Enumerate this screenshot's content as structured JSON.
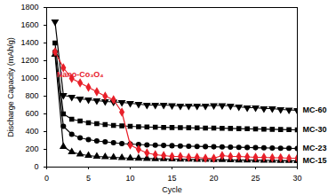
{
  "chart_data": {
    "type": "line",
    "xlabel": "Cycle",
    "ylabel": "Discharge Capacity (mAh/g)",
    "x": [
      1,
      2,
      3,
      4,
      5,
      6,
      7,
      8,
      9,
      10,
      11,
      12,
      13,
      14,
      15,
      16,
      17,
      18,
      19,
      20,
      21,
      22,
      23,
      24,
      25,
      26,
      27,
      28,
      29,
      30
    ],
    "xlim": [
      0,
      30
    ],
    "xticks": [
      0,
      5,
      10,
      15,
      20,
      25,
      30
    ],
    "ylim": [
      0,
      1800
    ],
    "yticks": [
      0,
      200,
      400,
      600,
      800,
      1000,
      1200,
      1400,
      1600,
      1800
    ],
    "series": [
      {
        "name": "MC-60",
        "color": "#000000",
        "marker": "triangle-down",
        "values": [
          1640,
          810,
          790,
          770,
          760,
          750,
          740,
          735,
          730,
          720,
          710,
          700,
          700,
          700,
          695,
          690,
          690,
          690,
          690,
          695,
          695,
          690,
          680,
          670,
          670,
          660,
          660,
          650,
          645,
          640
        ]
      },
      {
        "name": "MC-30",
        "color": "#000000",
        "marker": "square",
        "values": [
          1400,
          600,
          540,
          520,
          500,
          490,
          480,
          470,
          465,
          460,
          455,
          452,
          450,
          448,
          446,
          445,
          444,
          442,
          440,
          440,
          438,
          436,
          434,
          432,
          430,
          428,
          426,
          424,
          422,
          420
        ]
      },
      {
        "name": "MC-23",
        "color": "#000000",
        "marker": "circle",
        "values": [
          1300,
          460,
          370,
          330,
          310,
          295,
          285,
          275,
          265,
          260,
          255,
          250,
          247,
          244,
          241,
          238,
          235,
          233,
          231,
          229,
          227,
          225,
          223,
          221,
          219,
          217,
          215,
          213,
          212,
          210
        ]
      },
      {
        "name": "MC-15",
        "color": "#000000",
        "marker": "triangle",
        "values": [
          1270,
          230,
          170,
          145,
          130,
          120,
          115,
          110,
          105,
          100,
          98,
          96,
          94,
          92,
          90,
          88,
          87,
          86,
          85,
          84,
          82,
          80,
          79,
          78,
          77,
          76,
          75,
          73,
          72,
          70
        ]
      },
      {
        "name": "Nano-Co₃O₄",
        "color": "#e8202a",
        "marker": "diamond",
        "values": [
          1300,
          1120,
          1000,
          950,
          900,
          850,
          800,
          760,
          620,
          250,
          200,
          160,
          140,
          130,
          120,
          120,
          110,
          110,
          100,
          100,
          130,
          120,
          120,
          115,
          110,
          110,
          105,
          105,
          100,
          100
        ]
      }
    ]
  }
}
